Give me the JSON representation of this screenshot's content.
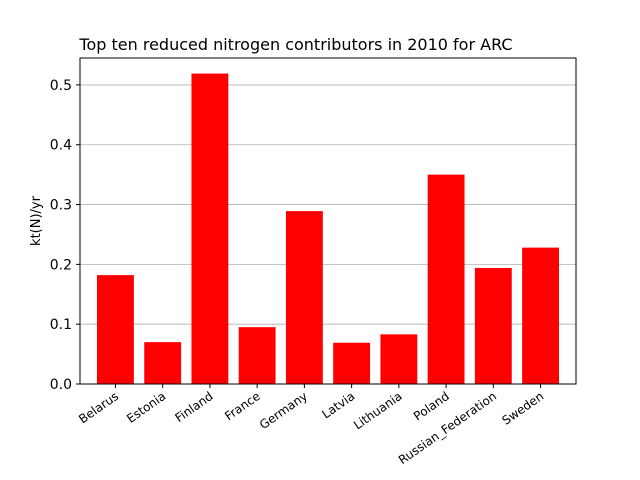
{
  "chart_data": {
    "type": "bar",
    "title": "Top ten reduced nitrogen contributors in 2010 for ARC",
    "xlabel": "",
    "ylabel": "kt(N)/yr",
    "categories": [
      "Belarus",
      "Estonia",
      "Finland",
      "France",
      "Germany",
      "Latvia",
      "Lithuania",
      "Poland",
      "Russian_Federation",
      "Sweden"
    ],
    "values": [
      0.182,
      0.07,
      0.519,
      0.095,
      0.289,
      0.069,
      0.083,
      0.35,
      0.194,
      0.228
    ],
    "ylim": [
      0,
      0.545
    ],
    "yticks": [
      "0.0",
      "0.1",
      "0.2",
      "0.3",
      "0.4",
      "0.5"
    ],
    "bar_color": "#ff0000",
    "grid": "horizontal",
    "legend": "none"
  }
}
